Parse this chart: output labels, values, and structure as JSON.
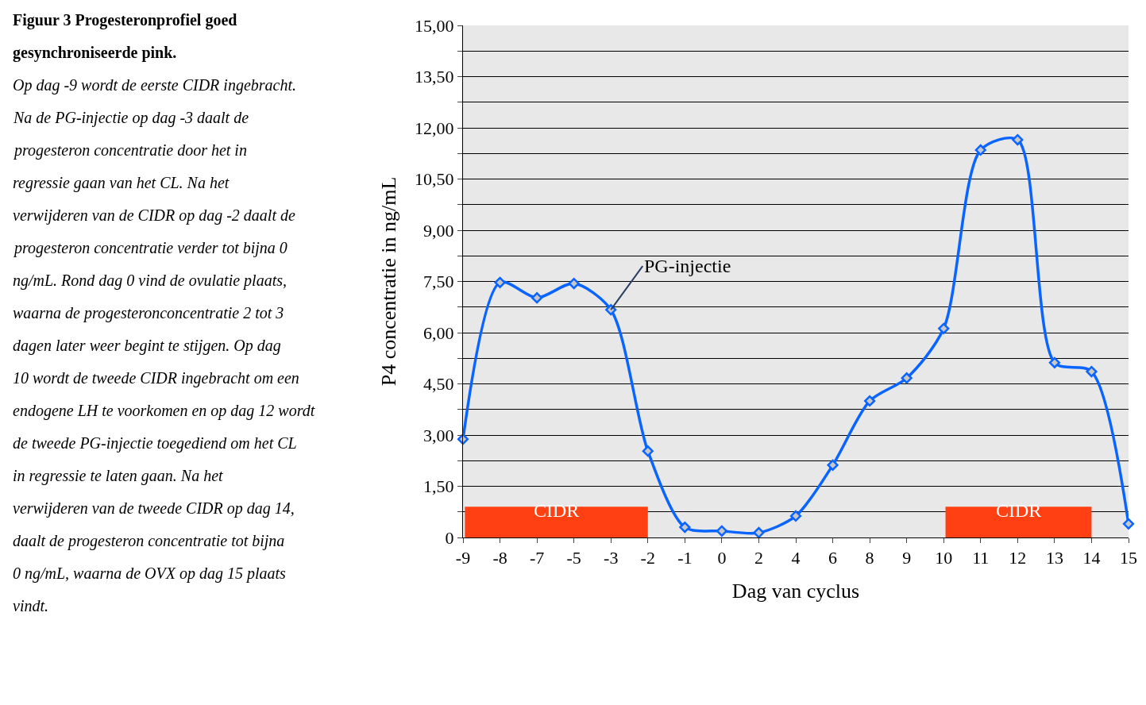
{
  "chart_data": {
    "type": "line",
    "title": "Figuur 3 Progesteronprofiel goed gesynchroniseerde pink.",
    "xlabel": "Dag van cyclus",
    "ylabel": "P4 concentratie in ng/mL",
    "categories": [
      "-9",
      "-8",
      "-7",
      "-5",
      "-3",
      "-2",
      "-1",
      "0",
      "2",
      "4",
      "6",
      "8",
      "9",
      "10",
      "11",
      "12",
      "13",
      "14",
      "15"
    ],
    "series": [
      {
        "color": "#0a64ff",
        "values": [
          2.88,
          7.47,
          7.02,
          7.44,
          6.67,
          2.53,
          0.3,
          0.19,
          0.14,
          0.63,
          2.12,
          4.0,
          4.67,
          6.12,
          11.35,
          11.65,
          5.12,
          4.86,
          0.4
        ]
      }
    ],
    "ylim": [
      0,
      15
    ],
    "yticks": [
      {
        "value": 0,
        "label": "0"
      },
      {
        "value": 0.75,
        "label": null
      },
      {
        "value": 1.5,
        "label": "1,50"
      },
      {
        "value": 2.25,
        "label": null
      },
      {
        "value": 3,
        "label": "3,00"
      },
      {
        "value": 3.75,
        "label": null
      },
      {
        "value": 4.5,
        "label": "4,50"
      },
      {
        "value": 5.25,
        "label": null
      },
      {
        "value": 6,
        "label": "6,00"
      },
      {
        "value": 6.75,
        "label": null
      },
      {
        "value": 7.5,
        "label": "7,50"
      },
      {
        "value": 8.25,
        "label": null
      },
      {
        "value": 9,
        "label": "9,00"
      },
      {
        "value": 9.75,
        "label": null
      },
      {
        "value": 10.5,
        "label": "10,50"
      },
      {
        "value": 11.25,
        "label": null
      },
      {
        "value": 12,
        "label": "12,00"
      },
      {
        "value": 12.75,
        "label": null
      },
      {
        "value": 13.5,
        "label": "13,50"
      },
      {
        "value": 14.25,
        "label": null
      },
      {
        "value": 15,
        "label": "15,00"
      }
    ],
    "grid": "y",
    "marker": "diamond",
    "line_style": "solid",
    "bands": [
      {
        "axis": "x",
        "from": "-9",
        "to": "-2",
        "label": "CIDR",
        "color": "#ff4013"
      },
      {
        "axis": "x",
        "from": "10",
        "to": "14",
        "label": "CIDR",
        "color": "#ff4013"
      }
    ],
    "annotations": [
      {
        "text": "PG-injectie",
        "x": "-3",
        "y": 6.67
      },
      "Op dag -9 wordt de eerste CIDR ingebracht. Na de PG-injectie op dag -3 daalt de progesteron concentratie door het in regressie gaan van het CL. Na het verwijderen van de CIDR op dag -2 daalt de progesteron concentratie verder tot bijna 0 ng/mL. Rond dag 0 vind de ovulatie plaats, waarna de progesteronconcentratie 2 tot 3 dagen later weer begint te stijgen. Op dag 10 wordt de tweede CIDR ingebracht om een endogene LH te voorkomen en op dag 12 wordt de tweede PG-injectie toegediend om het CL in regressie te laten gaan. Na het verwijderen van de tweede CIDR op dag 14, daalt de progesteron concentratie tot bijna 0 ng/mL, waarna de OVX op dag 15 plaats vindt."
    ]
  }
}
